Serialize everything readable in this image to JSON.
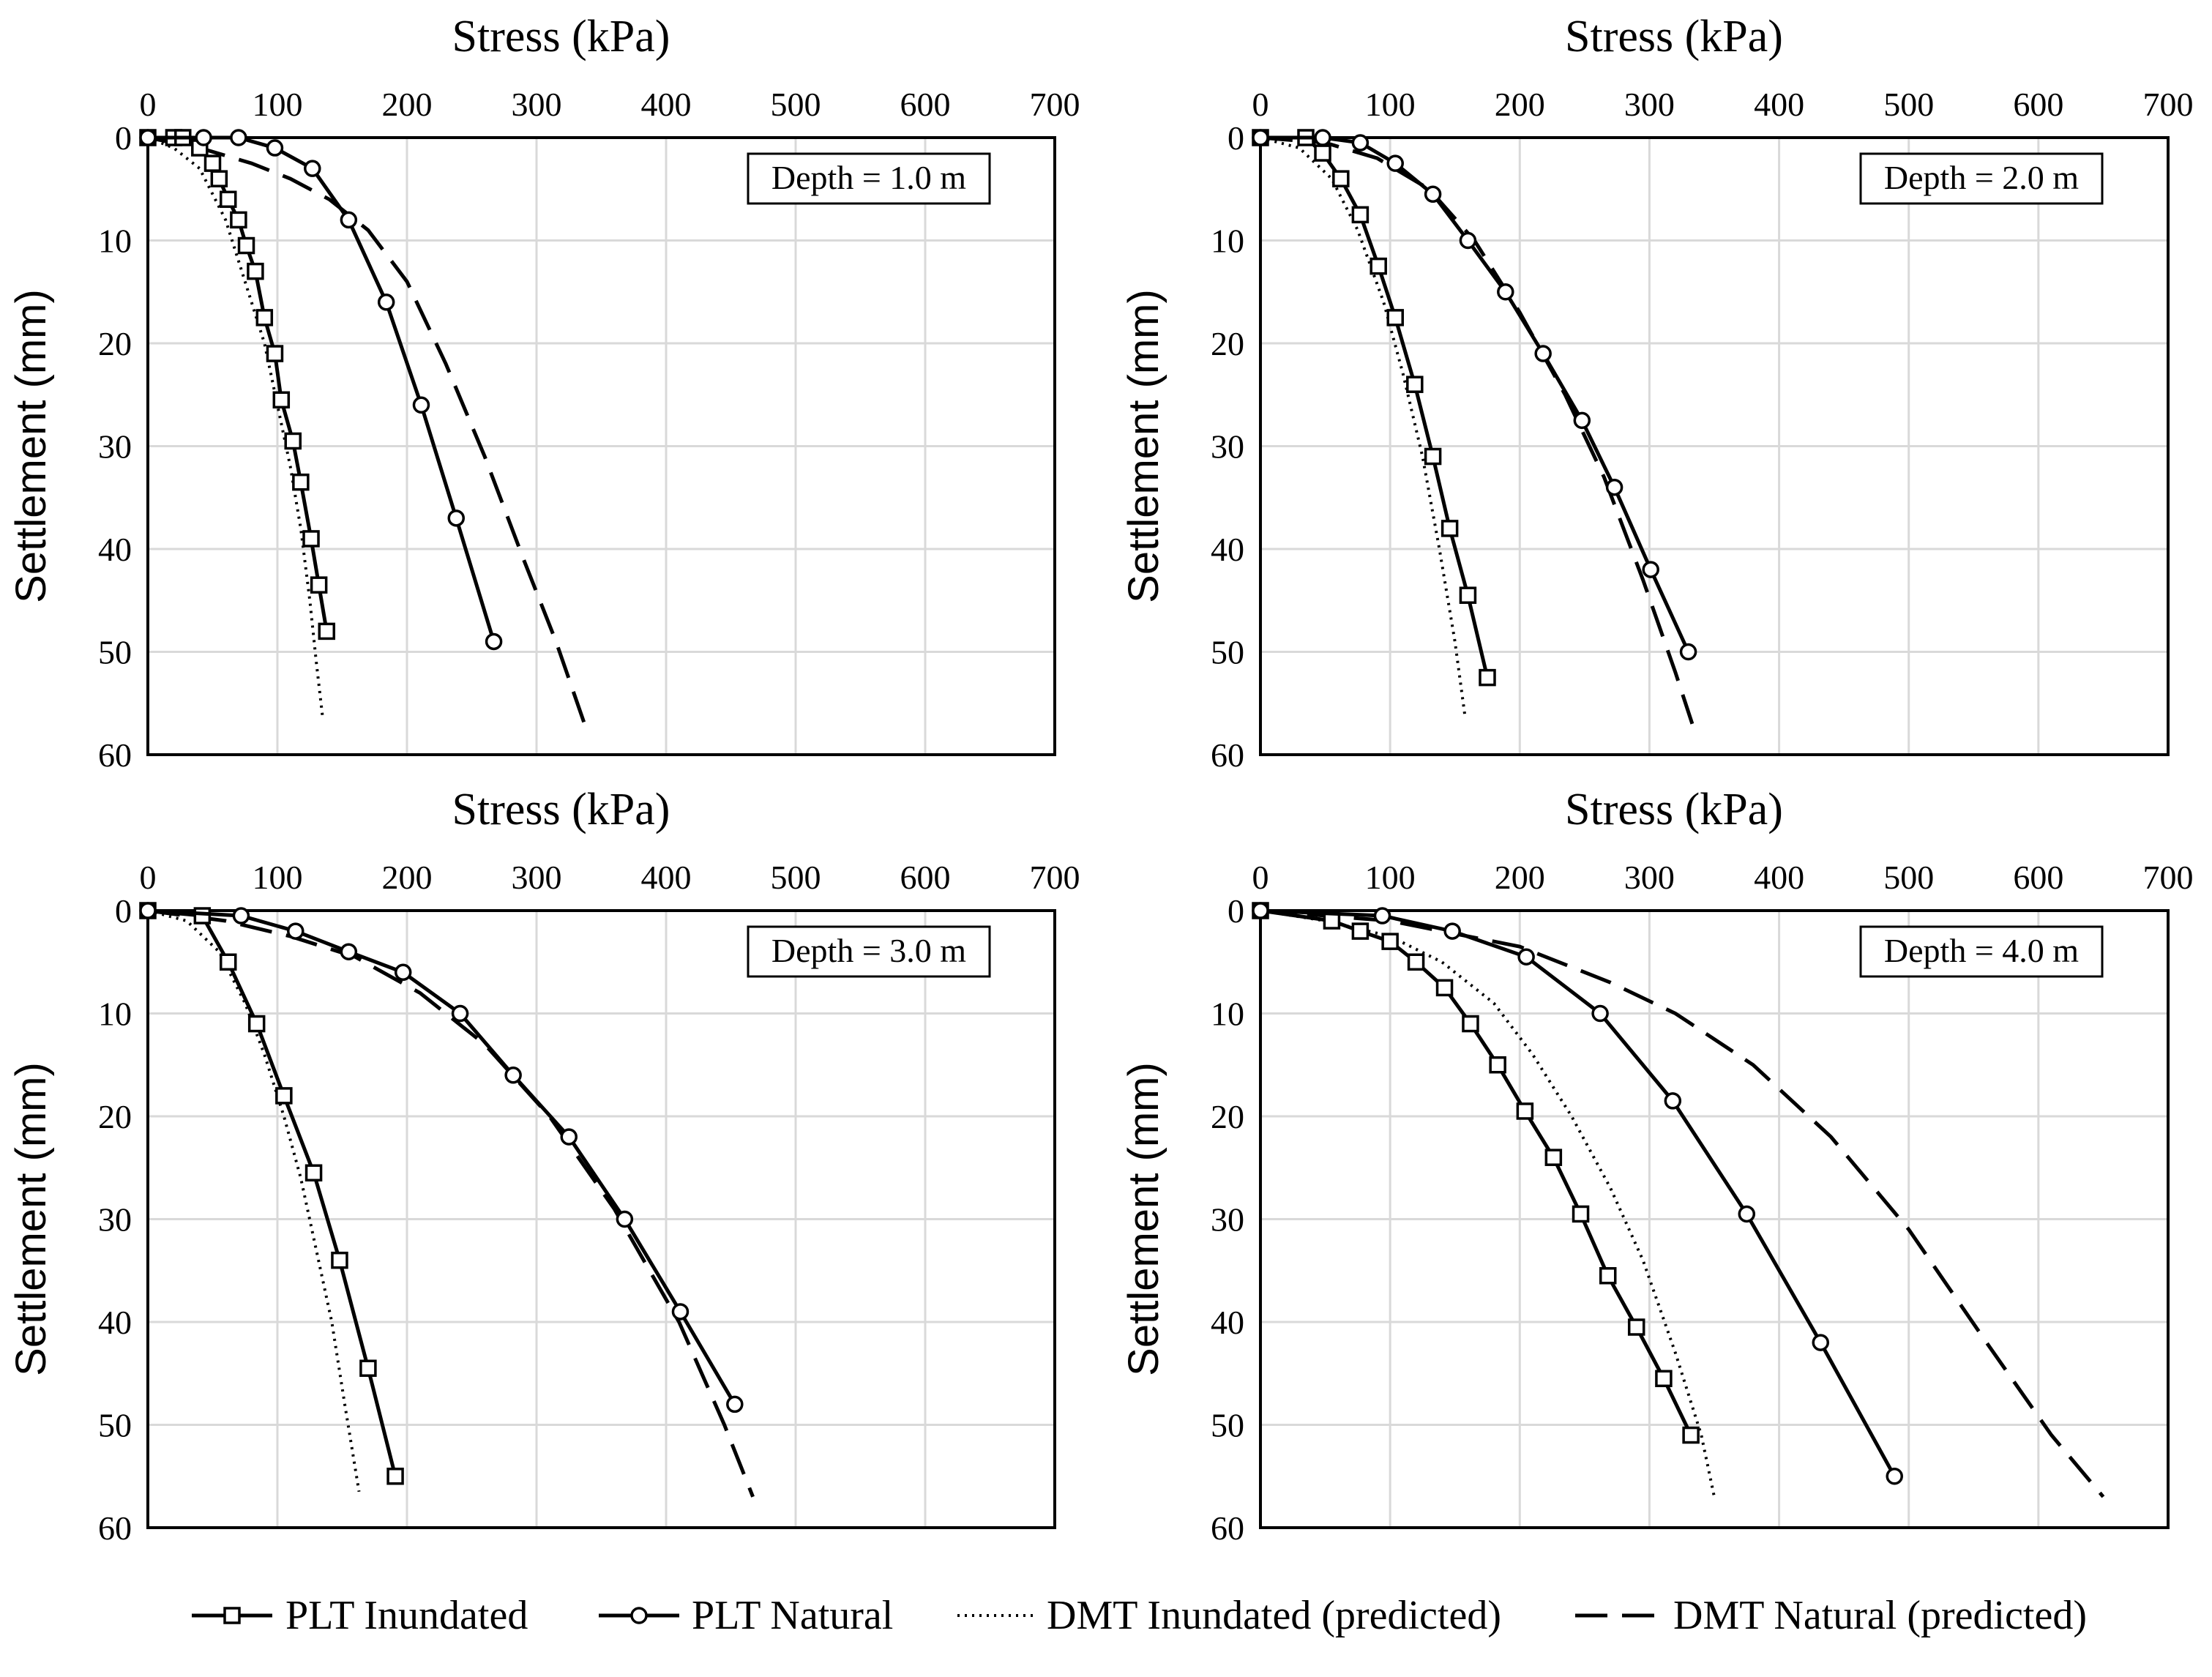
{
  "legend": [
    {
      "key": "plt_inundated",
      "label": "PLT Inundated"
    },
    {
      "key": "plt_natural",
      "label": "PLT Natural"
    },
    {
      "key": "dmt_inundated",
      "label": "DMT Inundated (predicted)"
    },
    {
      "key": "dmt_natural",
      "label": "DMT Natural (predicted)"
    }
  ],
  "chart_data": [
    {
      "type": "line",
      "title": "Stress (kPa)",
      "xlabel": "Stress (kPa)",
      "ylabel": "Settlement (mm)",
      "annotation": "Depth = 1.0 m",
      "xlim": [
        0,
        700
      ],
      "ylim": [
        0,
        60
      ],
      "y_inverted": true,
      "xticks": [
        0,
        100,
        200,
        300,
        400,
        500,
        600,
        700
      ],
      "yticks": [
        0,
        10,
        20,
        30,
        40,
        50,
        60
      ],
      "series": [
        {
          "key": "plt_inundated",
          "name": "PLT Inundated",
          "x": [
            0,
            20,
            27,
            40,
            50,
            55,
            62,
            70,
            76,
            83,
            90,
            98,
            103,
            112,
            118,
            126,
            132,
            138
          ],
          "y": [
            0,
            0,
            0,
            1,
            2.5,
            4,
            6,
            8,
            10.5,
            13,
            17.5,
            21,
            25.5,
            29.5,
            33.5,
            39,
            43.5,
            48
          ]
        },
        {
          "key": "plt_natural",
          "name": "PLT Natural",
          "x": [
            0,
            43,
            70,
            98,
            127,
            155,
            184,
            211,
            238,
            267
          ],
          "y": [
            0,
            0,
            0,
            1,
            3,
            8,
            16,
            26,
            37,
            49
          ]
        },
        {
          "key": "dmt_inundated",
          "name": "DMT Inundated (predicted)",
          "x": [
            0,
            20,
            40,
            60,
            75,
            90,
            100,
            110,
            118,
            125,
            130,
            135
          ],
          "y": [
            0,
            1,
            3,
            8,
            14,
            20,
            26,
            32,
            38,
            45,
            51,
            56.5
          ]
        },
        {
          "key": "dmt_natural",
          "name": "DMT Natural (predicted)",
          "x": [
            0,
            40,
            80,
            110,
            140,
            170,
            200,
            230,
            260,
            290,
            315,
            337
          ],
          "y": [
            0,
            1,
            2.5,
            4,
            6,
            9,
            14,
            22,
            31,
            41,
            49,
            57
          ]
        }
      ]
    },
    {
      "type": "line",
      "title": "Stress (kPa)",
      "xlabel": "Stress (kPa)",
      "ylabel": "Settlement (mm)",
      "annotation": "Depth = 2.0 m",
      "xlim": [
        0,
        700
      ],
      "ylim": [
        0,
        60
      ],
      "y_inverted": true,
      "xticks": [
        0,
        100,
        200,
        300,
        400,
        500,
        600,
        700
      ],
      "yticks": [
        0,
        10,
        20,
        30,
        40,
        50,
        60
      ],
      "series": [
        {
          "key": "plt_inundated",
          "name": "PLT Inundated",
          "x": [
            0,
            35,
            48,
            62,
            77,
            91,
            104,
            119,
            133,
            146,
            160,
            175
          ],
          "y": [
            0,
            0,
            1.5,
            4,
            7.5,
            12.5,
            17.5,
            24,
            31,
            38,
            44.5,
            52.5
          ]
        },
        {
          "key": "plt_natural",
          "name": "PLT Natural",
          "x": [
            0,
            48,
            77,
            104,
            133,
            160,
            189,
            218,
            248,
            273,
            301,
            330
          ],
          "y": [
            0,
            0,
            0.5,
            2.5,
            5.5,
            10,
            15,
            21,
            27.5,
            34,
            42,
            50
          ]
        },
        {
          "key": "dmt_inundated",
          "name": "DMT Inundated (predicted)",
          "x": [
            0,
            30,
            55,
            75,
            95,
            110,
            125,
            138,
            150,
            158
          ],
          "y": [
            0,
            1,
            4,
            9,
            16,
            23,
            31,
            40,
            49,
            56.5
          ]
        },
        {
          "key": "dmt_natural",
          "name": "DMT Natural (predicted)",
          "x": [
            0,
            50,
            90,
            130,
            165,
            200,
            235,
            265,
            295,
            320,
            333
          ],
          "y": [
            0,
            0.5,
            2,
            5,
            10,
            17,
            25,
            33,
            43,
            52,
            57
          ]
        }
      ]
    },
    {
      "type": "line",
      "title": "Stress (kPa)",
      "xlabel": "Stress (kPa)",
      "ylabel": "Settlement (mm)",
      "annotation": "Depth = 3.0 m",
      "xlim": [
        0,
        700
      ],
      "ylim": [
        0,
        60
      ],
      "y_inverted": true,
      "xticks": [
        0,
        100,
        200,
        300,
        400,
        500,
        600,
        700
      ],
      "yticks": [
        0,
        10,
        20,
        30,
        40,
        50,
        60
      ],
      "series": [
        {
          "key": "plt_inundated",
          "name": "PLT Inundated",
          "x": [
            0,
            42,
            62,
            84,
            105,
            128,
            148,
            170,
            191
          ],
          "y": [
            0,
            0.5,
            5,
            11,
            18,
            25.5,
            34,
            44.5,
            55
          ]
        },
        {
          "key": "plt_natural",
          "name": "PLT Natural",
          "x": [
            0,
            72,
            114,
            155,
            197,
            241,
            282,
            325,
            368,
            411,
            453
          ],
          "y": [
            0,
            0.5,
            2,
            4,
            6,
            10,
            16,
            22,
            30,
            39,
            48
          ]
        },
        {
          "key": "dmt_inundated",
          "name": "DMT Inundated (predicted)",
          "x": [
            0,
            30,
            55,
            75,
            90,
            105,
            118,
            130,
            142,
            152,
            163
          ],
          "y": [
            0,
            1,
            4,
            9,
            14,
            20,
            26,
            33,
            40,
            48,
            56.5
          ]
        },
        {
          "key": "dmt_natural",
          "name": "DMT Natural (predicted)",
          "x": [
            0,
            60,
            110,
            160,
            210,
            260,
            310,
            360,
            410,
            445,
            467
          ],
          "y": [
            0,
            1,
            2.5,
            4.5,
            8,
            13,
            20,
            29,
            40,
            50,
            57
          ]
        }
      ]
    },
    {
      "type": "line",
      "title": "Stress (kPa)",
      "xlabel": "Stress (kPa)",
      "ylabel": "Settlement (mm)",
      "annotation": "Depth = 4.0 m",
      "xlim": [
        0,
        700
      ],
      "ylim": [
        0,
        60
      ],
      "y_inverted": true,
      "xticks": [
        0,
        100,
        200,
        300,
        400,
        500,
        600,
        700
      ],
      "yticks": [
        0,
        10,
        20,
        30,
        40,
        50,
        60
      ],
      "series": [
        {
          "key": "plt_inundated",
          "name": "PLT Inundated",
          "x": [
            0,
            55,
            77,
            100,
            120,
            142,
            162,
            183,
            204,
            226,
            247,
            268,
            290,
            311,
            332
          ],
          "y": [
            0,
            1,
            2,
            3,
            5,
            7.5,
            11,
            15,
            19.5,
            24,
            29.5,
            35.5,
            40.5,
            45.5,
            51
          ]
        },
        {
          "key": "plt_natural",
          "name": "PLT Natural",
          "x": [
            0,
            94,
            148,
            205,
            262,
            318,
            375,
            432,
            489
          ],
          "y": [
            0,
            0.5,
            2,
            4.5,
            10,
            18.5,
            29.5,
            42,
            55
          ]
        },
        {
          "key": "dmt_inundated",
          "name": "DMT Inundated (predicted)",
          "x": [
            0,
            50,
            100,
            140,
            180,
            210,
            240,
            270,
            295,
            320,
            340,
            350
          ],
          "y": [
            0,
            1,
            2.5,
            5,
            9,
            14,
            20,
            27,
            34,
            43,
            51,
            57
          ]
        },
        {
          "key": "dmt_natural",
          "name": "DMT Natural (predicted)",
          "x": [
            0,
            100,
            200,
            270,
            320,
            380,
            440,
            500,
            560,
            610,
            650
          ],
          "y": [
            0,
            1,
            3.5,
            7,
            10,
            15,
            22,
            31,
            42,
            51,
            57
          ]
        }
      ]
    }
  ]
}
